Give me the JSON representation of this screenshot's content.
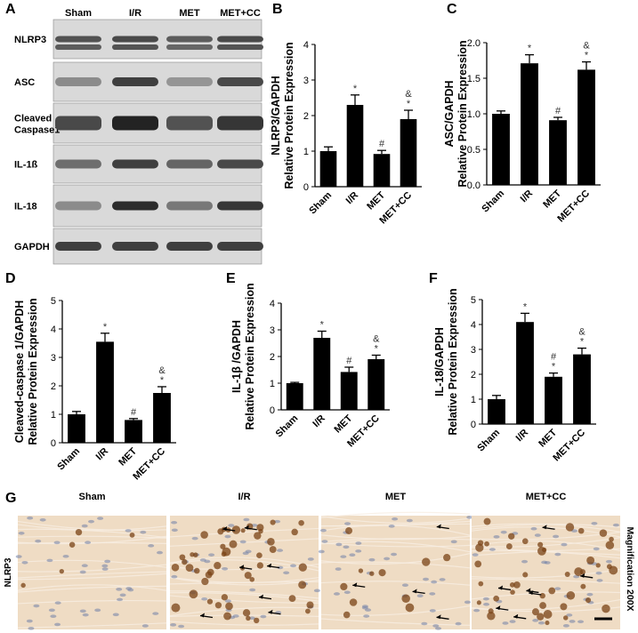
{
  "panel_letters": {
    "A": "A",
    "B": "B",
    "C": "C",
    "D": "D",
    "E": "E",
    "F": "F",
    "G": "G"
  },
  "western_blot": {
    "lanes": [
      "Sham",
      "I/R",
      "MET",
      "MET+CC"
    ],
    "rows": [
      {
        "label": "NLRP3",
        "intensity": [
          0.7,
          0.75,
          0.65,
          0.75
        ]
      },
      {
        "label": "ASC",
        "intensity": [
          0.4,
          0.8,
          0.35,
          0.75
        ]
      },
      {
        "label": "Cleaved Caspase1",
        "intensity": [
          0.75,
          0.95,
          0.7,
          0.85
        ]
      },
      {
        "label": "IL-1ß",
        "intensity": [
          0.55,
          0.8,
          0.6,
          0.75
        ]
      },
      {
        "label": "IL-18",
        "intensity": [
          0.4,
          0.9,
          0.5,
          0.85
        ]
      },
      {
        "label": "GAPDH",
        "intensity": [
          0.8,
          0.8,
          0.8,
          0.8
        ]
      }
    ]
  },
  "chart_data": [
    {
      "id": "B",
      "type": "bar",
      "categories": [
        "Sham",
        "I/R",
        "MET",
        "MET+CC"
      ],
      "values": [
        1.0,
        2.3,
        0.92,
        1.9
      ],
      "errors": [
        0.12,
        0.28,
        0.1,
        0.25
      ],
      "annotations": [
        "",
        "*",
        "#",
        "&\n*"
      ],
      "ylabel_lines": [
        "NLRP3/GAPDH",
        "Relative Protein Expression"
      ],
      "ylim": [
        0,
        4
      ],
      "yticks": [
        0,
        1,
        2,
        3,
        4
      ]
    },
    {
      "id": "C",
      "type": "bar",
      "categories": [
        "Sham",
        "I/R",
        "MET",
        "MET+CC"
      ],
      "values": [
        1.0,
        1.71,
        0.91,
        1.62
      ],
      "errors": [
        0.04,
        0.12,
        0.04,
        0.11
      ],
      "annotations": [
        "",
        "*",
        "#",
        "&\n*"
      ],
      "ylabel_lines": [
        "ASC/GAPDH",
        "Relative Protein Expression"
      ],
      "ylim": [
        0,
        2.0
      ],
      "yticks": [
        0.0,
        0.5,
        1.0,
        1.5,
        2.0
      ]
    },
    {
      "id": "D",
      "type": "bar",
      "categories": [
        "Sham",
        "I/R",
        "MET",
        "MET+CC"
      ],
      "values": [
        1.0,
        3.55,
        0.8,
        1.75
      ],
      "errors": [
        0.1,
        0.3,
        0.05,
        0.22
      ],
      "annotations": [
        "",
        "*",
        "#",
        "&\n*"
      ],
      "ylabel_lines": [
        "Cleaved-caspase 1/GAPDH",
        "Relative Protein Expression"
      ],
      "ylim": [
        0,
        5
      ],
      "yticks": [
        0,
        1,
        2,
        3,
        4,
        5
      ]
    },
    {
      "id": "E",
      "type": "bar",
      "categories": [
        "Sham",
        "I/R",
        "MET",
        "MET+CC"
      ],
      "values": [
        1.0,
        2.7,
        1.42,
        1.9
      ],
      "errors": [
        0.03,
        0.25,
        0.18,
        0.15
      ],
      "annotations": [
        "",
        "*",
        "#",
        "&\n*"
      ],
      "ylabel_lines": [
        "IL-1β /GAPDH",
        "Relative Protein Expression"
      ],
      "ylim": [
        0,
        4
      ],
      "yticks": [
        0,
        1,
        2,
        3,
        4
      ]
    },
    {
      "id": "F",
      "type": "bar",
      "categories": [
        "Sham",
        "I/R",
        "MET",
        "MET+CC"
      ],
      "values": [
        1.0,
        4.1,
        1.9,
        2.8
      ],
      "errors": [
        0.15,
        0.35,
        0.15,
        0.25
      ],
      "annotations": [
        "",
        "*",
        "#\n*",
        "&\n*"
      ],
      "ylabel_lines": [
        "IL-18/GAPDH",
        "Relative Protein Expression"
      ],
      "ylim": [
        0,
        5
      ],
      "yticks": [
        0,
        1,
        2,
        3,
        4,
        5
      ]
    }
  ],
  "ihc": {
    "row_label": "NLRP3",
    "columns": [
      "Sham",
      "I/R",
      "MET",
      "MET+CC"
    ],
    "side_label": "Magnification 200X",
    "stain_density": [
      0.05,
      0.55,
      0.12,
      0.5
    ]
  },
  "colors": {
    "bar": "#000000",
    "tissue_bg": "#efdcc4",
    "stain": "#7a4315",
    "nucleus": "#6f7fa8"
  }
}
